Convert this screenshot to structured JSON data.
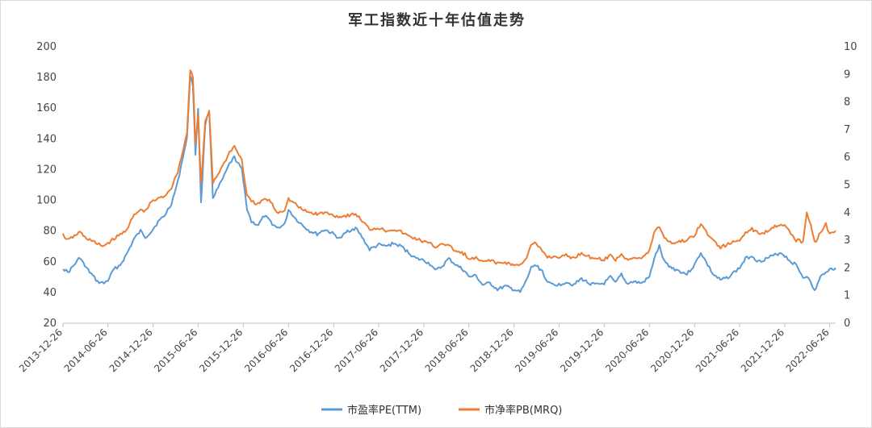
{
  "chart_data": {
    "type": "line",
    "title": "军工指数近十年估值走势",
    "x_ticks": [
      "2013-12-26",
      "2014-06-26",
      "2014-12-26",
      "2015-06-26",
      "2015-12-26",
      "2016-06-26",
      "2016-12-26",
      "2017-06-26",
      "2017-12-26",
      "2018-06-26",
      "2018-12-26",
      "2019-06-26",
      "2019-12-26",
      "2020-06-26",
      "2020-12-26",
      "2021-06-26",
      "2021-12-26",
      "2022-06-26"
    ],
    "x_range": [
      "2013-12-26",
      "2022-07-20"
    ],
    "y_left": {
      "ticks": [
        20,
        40,
        60,
        80,
        100,
        120,
        140,
        160,
        180,
        200
      ],
      "range": [
        20,
        200
      ]
    },
    "y_right": {
      "ticks": [
        0,
        1,
        2,
        3,
        4,
        5,
        6,
        7,
        8,
        9,
        10
      ],
      "range": [
        0,
        10
      ]
    },
    "grid": false,
    "legend_position": "bottom",
    "series": [
      {
        "name": "市盈率PE(TTM)",
        "axis": "left",
        "color": "#5b9bd5",
        "points": [
          [
            "2013-12-26",
            56
          ],
          [
            "2014-01-15",
            53
          ],
          [
            "2014-02-10",
            58
          ],
          [
            "2014-03-05",
            63
          ],
          [
            "2014-03-25",
            57
          ],
          [
            "2014-04-20",
            52
          ],
          [
            "2014-05-15",
            47
          ],
          [
            "2014-06-10",
            46
          ],
          [
            "2014-06-26",
            48
          ],
          [
            "2014-07-20",
            55
          ],
          [
            "2014-08-15",
            58
          ],
          [
            "2014-09-10",
            65
          ],
          [
            "2014-10-10",
            75
          ],
          [
            "2014-11-05",
            80
          ],
          [
            "2014-11-25",
            76
          ],
          [
            "2014-12-20",
            80
          ],
          [
            "2015-01-15",
            86
          ],
          [
            "2015-02-10",
            90
          ],
          [
            "2015-03-10",
            98
          ],
          [
            "2015-04-05",
            112
          ],
          [
            "2015-04-25",
            128
          ],
          [
            "2015-05-12",
            140
          ],
          [
            "2015-05-25",
            182
          ],
          [
            "2015-06-05",
            175
          ],
          [
            "2015-06-15",
            130
          ],
          [
            "2015-06-26",
            160
          ],
          [
            "2015-07-08",
            98
          ],
          [
            "2015-07-25",
            150
          ],
          [
            "2015-08-10",
            158
          ],
          [
            "2015-08-25",
            102
          ],
          [
            "2015-09-15",
            108
          ],
          [
            "2015-10-10",
            116
          ],
          [
            "2015-11-01",
            124
          ],
          [
            "2015-11-20",
            128
          ],
          [
            "2015-12-20",
            120
          ],
          [
            "2016-01-10",
            95
          ],
          [
            "2016-01-28",
            86
          ],
          [
            "2016-02-25",
            84
          ],
          [
            "2016-03-20",
            90
          ],
          [
            "2016-04-15",
            86
          ],
          [
            "2016-05-10",
            82
          ],
          [
            "2016-06-10",
            84
          ],
          [
            "2016-06-26",
            94
          ],
          [
            "2016-07-25",
            88
          ],
          [
            "2016-08-20",
            84
          ],
          [
            "2016-09-20",
            80
          ],
          [
            "2016-10-20",
            78
          ],
          [
            "2016-11-20",
            81
          ],
          [
            "2016-12-26",
            78
          ],
          [
            "2017-01-20",
            75
          ],
          [
            "2017-02-20",
            80
          ],
          [
            "2017-03-25",
            82
          ],
          [
            "2017-04-20",
            76
          ],
          [
            "2017-05-20",
            68
          ],
          [
            "2017-06-26",
            71
          ],
          [
            "2017-07-25",
            70
          ],
          [
            "2017-08-25",
            72
          ],
          [
            "2017-09-25",
            70
          ],
          [
            "2017-10-25",
            66
          ],
          [
            "2017-11-25",
            62
          ],
          [
            "2017-12-26",
            61
          ],
          [
            "2018-01-25",
            58
          ],
          [
            "2018-02-10",
            54
          ],
          [
            "2018-03-10",
            57
          ],
          [
            "2018-04-05",
            62
          ],
          [
            "2018-05-05",
            58
          ],
          [
            "2018-06-10",
            54
          ],
          [
            "2018-06-26",
            50
          ],
          [
            "2018-07-25",
            51
          ],
          [
            "2018-08-20",
            45
          ],
          [
            "2018-09-20",
            46
          ],
          [
            "2018-10-20",
            42
          ],
          [
            "2018-11-20",
            44
          ],
          [
            "2018-12-26",
            42
          ],
          [
            "2019-01-20",
            40
          ],
          [
            "2019-02-15",
            48
          ],
          [
            "2019-03-05",
            56
          ],
          [
            "2019-03-20",
            58
          ],
          [
            "2019-04-20",
            54
          ],
          [
            "2019-05-10",
            46
          ],
          [
            "2019-06-26",
            45
          ],
          [
            "2019-07-25",
            47
          ],
          [
            "2019-08-25",
            45
          ],
          [
            "2019-09-25",
            49
          ],
          [
            "2019-10-25",
            46
          ],
          [
            "2019-11-25",
            45
          ],
          [
            "2019-12-26",
            46
          ],
          [
            "2020-01-20",
            50
          ],
          [
            "2020-02-10",
            46
          ],
          [
            "2020-03-05",
            52
          ],
          [
            "2020-03-25",
            46
          ],
          [
            "2020-04-25",
            47
          ],
          [
            "2020-05-25",
            46
          ],
          [
            "2020-06-26",
            50
          ],
          [
            "2020-07-15",
            62
          ],
          [
            "2020-08-05",
            70
          ],
          [
            "2020-08-25",
            60
          ],
          [
            "2020-09-25",
            56
          ],
          [
            "2020-10-25",
            54
          ],
          [
            "2020-11-25",
            52
          ],
          [
            "2020-12-26",
            58
          ],
          [
            "2021-01-20",
            66
          ],
          [
            "2021-02-10",
            60
          ],
          [
            "2021-03-10",
            52
          ],
          [
            "2021-04-10",
            48
          ],
          [
            "2021-05-10",
            50
          ],
          [
            "2021-06-26",
            56
          ],
          [
            "2021-07-20",
            62
          ],
          [
            "2021-08-15",
            64
          ],
          [
            "2021-09-10",
            60
          ],
          [
            "2021-10-10",
            62
          ],
          [
            "2021-11-10",
            64
          ],
          [
            "2021-12-10",
            66
          ],
          [
            "2021-12-26",
            64
          ],
          [
            "2022-01-20",
            60
          ],
          [
            "2022-02-10",
            58
          ],
          [
            "2022-03-10",
            50
          ],
          [
            "2022-03-25",
            51
          ],
          [
            "2022-04-10",
            46
          ],
          [
            "2022-04-26",
            41
          ],
          [
            "2022-05-20",
            50
          ],
          [
            "2022-06-10",
            54
          ],
          [
            "2022-06-26",
            55
          ],
          [
            "2022-07-20",
            56
          ]
        ]
      },
      {
        "name": "市净率PB(MRQ)",
        "axis": "right",
        "color": "#ed7d31",
        "points": [
          [
            "2013-12-26",
            3.2
          ],
          [
            "2014-01-15",
            3.0
          ],
          [
            "2014-02-10",
            3.15
          ],
          [
            "2014-03-05",
            3.3
          ],
          [
            "2014-03-25",
            3.1
          ],
          [
            "2014-04-20",
            3.0
          ],
          [
            "2014-05-15",
            2.85
          ],
          [
            "2014-06-10",
            2.8
          ],
          [
            "2014-06-26",
            2.9
          ],
          [
            "2014-07-20",
            3.05
          ],
          [
            "2014-08-15",
            3.2
          ],
          [
            "2014-09-10",
            3.4
          ],
          [
            "2014-10-10",
            3.9
          ],
          [
            "2014-11-05",
            4.1
          ],
          [
            "2014-11-25",
            4.05
          ],
          [
            "2014-12-20",
            4.4
          ],
          [
            "2015-01-15",
            4.5
          ],
          [
            "2015-02-10",
            4.6
          ],
          [
            "2015-03-10",
            4.9
          ],
          [
            "2015-04-05",
            5.5
          ],
          [
            "2015-04-25",
            6.2
          ],
          [
            "2015-05-12",
            6.9
          ],
          [
            "2015-05-25",
            9.2
          ],
          [
            "2015-06-05",
            8.9
          ],
          [
            "2015-06-15",
            6.5
          ],
          [
            "2015-06-26",
            7.5
          ],
          [
            "2015-07-08",
            5.0
          ],
          [
            "2015-07-25",
            7.3
          ],
          [
            "2015-08-10",
            7.7
          ],
          [
            "2015-08-25",
            5.1
          ],
          [
            "2015-09-15",
            5.4
          ],
          [
            "2015-10-10",
            5.8
          ],
          [
            "2015-11-01",
            6.2
          ],
          [
            "2015-11-20",
            6.4
          ],
          [
            "2015-12-20",
            5.9
          ],
          [
            "2016-01-10",
            4.6
          ],
          [
            "2016-01-28",
            4.4
          ],
          [
            "2016-02-25",
            4.3
          ],
          [
            "2016-03-20",
            4.5
          ],
          [
            "2016-04-15",
            4.4
          ],
          [
            "2016-05-10",
            4.0
          ],
          [
            "2016-06-10",
            4.1
          ],
          [
            "2016-06-26",
            4.5
          ],
          [
            "2016-07-25",
            4.3
          ],
          [
            "2016-08-20",
            4.1
          ],
          [
            "2016-09-20",
            4.0
          ],
          [
            "2016-10-20",
            3.95
          ],
          [
            "2016-11-20",
            4.0
          ],
          [
            "2016-12-26",
            3.9
          ],
          [
            "2017-01-20",
            3.85
          ],
          [
            "2017-02-20",
            3.9
          ],
          [
            "2017-03-25",
            3.95
          ],
          [
            "2017-04-20",
            3.7
          ],
          [
            "2017-05-20",
            3.4
          ],
          [
            "2017-06-26",
            3.45
          ],
          [
            "2017-07-25",
            3.35
          ],
          [
            "2017-08-25",
            3.4
          ],
          [
            "2017-09-25",
            3.3
          ],
          [
            "2017-10-25",
            3.15
          ],
          [
            "2017-11-25",
            3.05
          ],
          [
            "2017-12-26",
            2.95
          ],
          [
            "2018-01-25",
            2.85
          ],
          [
            "2018-02-10",
            2.75
          ],
          [
            "2018-03-10",
            2.9
          ],
          [
            "2018-04-05",
            2.8
          ],
          [
            "2018-05-05",
            2.6
          ],
          [
            "2018-06-10",
            2.5
          ],
          [
            "2018-06-26",
            2.3
          ],
          [
            "2018-07-25",
            2.35
          ],
          [
            "2018-08-20",
            2.2
          ],
          [
            "2018-09-20",
            2.3
          ],
          [
            "2018-10-20",
            2.15
          ],
          [
            "2018-11-20",
            2.2
          ],
          [
            "2018-12-26",
            2.1
          ],
          [
            "2019-01-20",
            2.1
          ],
          [
            "2019-02-15",
            2.4
          ],
          [
            "2019-03-05",
            2.8
          ],
          [
            "2019-03-20",
            2.9
          ],
          [
            "2019-04-20",
            2.6
          ],
          [
            "2019-05-10",
            2.4
          ],
          [
            "2019-06-26",
            2.4
          ],
          [
            "2019-07-25",
            2.45
          ],
          [
            "2019-08-25",
            2.35
          ],
          [
            "2019-09-25",
            2.55
          ],
          [
            "2019-10-25",
            2.4
          ],
          [
            "2019-11-25",
            2.35
          ],
          [
            "2019-12-26",
            2.3
          ],
          [
            "2020-01-20",
            2.45
          ],
          [
            "2020-02-10",
            2.3
          ],
          [
            "2020-03-05",
            2.5
          ],
          [
            "2020-03-25",
            2.3
          ],
          [
            "2020-04-25",
            2.4
          ],
          [
            "2020-05-25",
            2.35
          ],
          [
            "2020-06-26",
            2.6
          ],
          [
            "2020-07-15",
            3.3
          ],
          [
            "2020-08-05",
            3.5
          ],
          [
            "2020-08-25",
            3.1
          ],
          [
            "2020-09-25",
            2.9
          ],
          [
            "2020-10-25",
            2.95
          ],
          [
            "2020-11-25",
            3.0
          ],
          [
            "2020-12-26",
            3.2
          ],
          [
            "2021-01-20",
            3.6
          ],
          [
            "2021-02-10",
            3.3
          ],
          [
            "2021-03-10",
            3.0
          ],
          [
            "2021-04-10",
            2.75
          ],
          [
            "2021-05-10",
            2.85
          ],
          [
            "2021-06-26",
            3.0
          ],
          [
            "2021-07-20",
            3.3
          ],
          [
            "2021-08-15",
            3.4
          ],
          [
            "2021-09-10",
            3.25
          ],
          [
            "2021-10-10",
            3.3
          ],
          [
            "2021-11-10",
            3.5
          ],
          [
            "2021-12-10",
            3.6
          ],
          [
            "2021-12-26",
            3.5
          ],
          [
            "2022-01-20",
            3.25
          ],
          [
            "2022-02-10",
            3.0
          ],
          [
            "2022-03-10",
            2.95
          ],
          [
            "2022-03-25",
            4.0
          ],
          [
            "2022-04-10",
            3.6
          ],
          [
            "2022-04-26",
            2.9
          ],
          [
            "2022-05-20",
            3.3
          ],
          [
            "2022-06-10",
            3.6
          ],
          [
            "2022-06-26",
            3.2
          ],
          [
            "2022-07-20",
            3.35
          ]
        ]
      }
    ]
  }
}
